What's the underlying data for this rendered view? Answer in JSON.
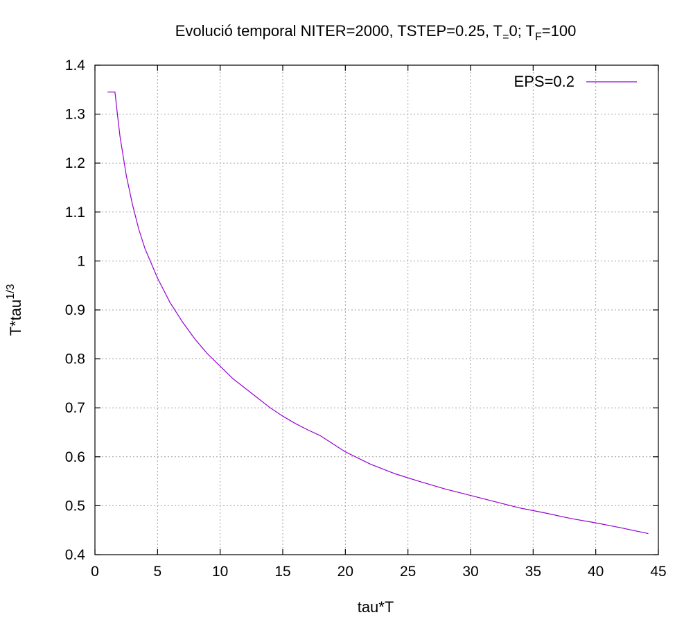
{
  "chart_data": {
    "type": "line",
    "title_parts": [
      {
        "text": "Evolució temporal NITER=2000, TSTEP=0.25, T",
        "sub": false
      },
      {
        "text": "=",
        "sub": true
      },
      {
        "text": "0; T",
        "sub": false
      },
      {
        "text": "F",
        "sub": true
      },
      {
        "text": "=100",
        "sub": false
      }
    ],
    "xlabel": "tau*T",
    "ylabel_base": "T*tau",
    "ylabel_sup": "1/3",
    "xlim": [
      0,
      45
    ],
    "ylim": [
      0.4,
      1.4
    ],
    "xticks": [
      "0",
      "5",
      "10",
      "15",
      "20",
      "25",
      "30",
      "35",
      "40",
      "45"
    ],
    "yticks": [
      "0.4",
      "0.5",
      "0.6",
      "0.7",
      "0.8",
      "0.9",
      "1",
      "1.1",
      "1.2",
      "1.3",
      "1.4"
    ],
    "grid": true,
    "legend_position": "top-right",
    "series": [
      {
        "name": "EPS=0.2",
        "color": "#9400d3",
        "x": [
          1.0,
          1.6,
          1.75,
          2.0,
          2.5,
          3.0,
          3.5,
          4.0,
          4.5,
          5.0,
          6.0,
          7.0,
          8.0,
          9.0,
          10.0,
          11.0,
          12.0,
          13.0,
          14.0,
          15.0,
          16.0,
          17.0,
          18.0,
          20.0,
          22.0,
          24.0,
          26.0,
          28.0,
          30.0,
          32.0,
          34.0,
          36.0,
          38.0,
          40.0,
          42.0,
          44.2
        ],
        "y": [
          1.345,
          1.345,
          1.31,
          1.255,
          1.175,
          1.115,
          1.065,
          1.025,
          0.995,
          0.965,
          0.915,
          0.875,
          0.84,
          0.81,
          0.785,
          0.76,
          0.74,
          0.72,
          0.7,
          0.683,
          0.668,
          0.655,
          0.643,
          0.61,
          0.585,
          0.565,
          0.549,
          0.534,
          0.521,
          0.508,
          0.495,
          0.485,
          0.474,
          0.465,
          0.455,
          0.443
        ]
      }
    ]
  }
}
